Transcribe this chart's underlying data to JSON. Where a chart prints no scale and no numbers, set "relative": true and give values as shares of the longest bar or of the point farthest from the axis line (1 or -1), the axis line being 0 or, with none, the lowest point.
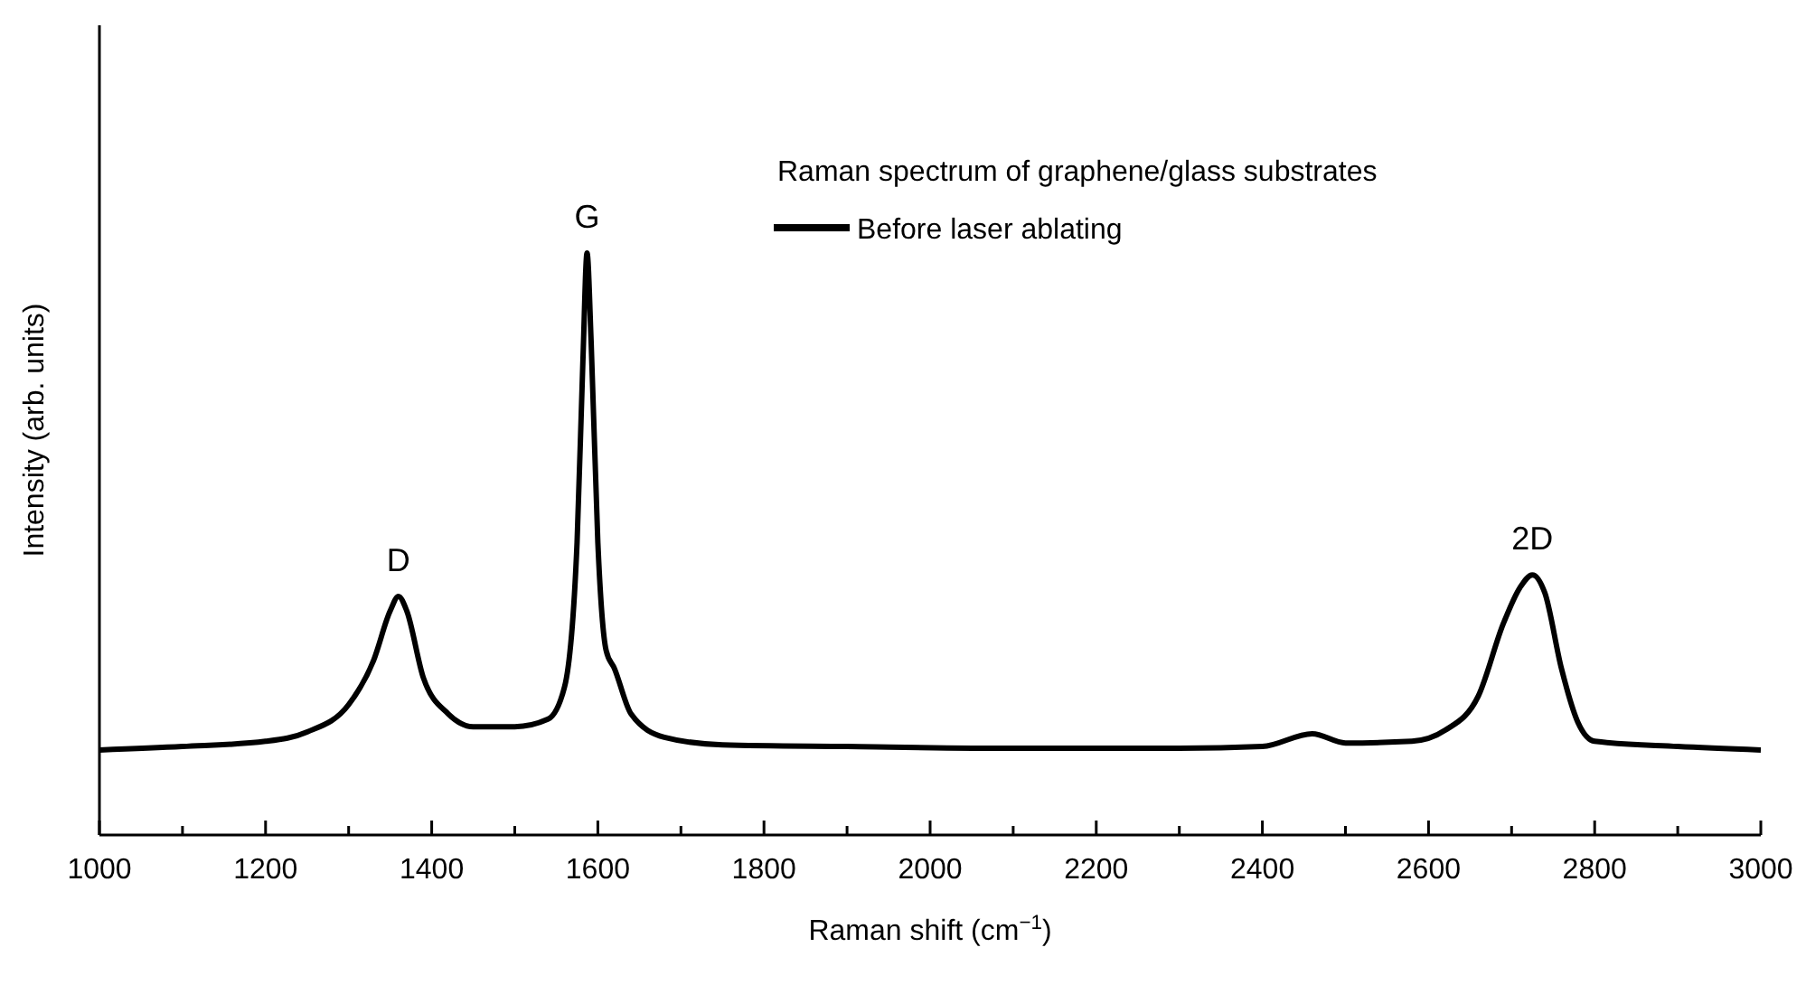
{
  "chart_data": {
    "type": "line",
    "relative": true,
    "xlabel": "Raman shift (cm$^{−1}$)",
    "ylabel": "Intensity (arb. units)",
    "legend_title": "Raman spectrum of graphene/glass substrates",
    "legend": "top right",
    "grid": false,
    "xlim": [
      1000,
      3000
    ],
    "xticks": [
      1000,
      {
        "value": 1100,
        "label": null
      },
      1200,
      {
        "value": 1300,
        "label": null
      },
      1400,
      {
        "value": 1500,
        "label": null
      },
      1600,
      {
        "value": 1700,
        "label": null
      },
      1800,
      {
        "value": 1900,
        "label": null
      },
      2000,
      {
        "value": 2100,
        "label": null
      },
      2200,
      {
        "value": 2300,
        "label": null
      },
      2400,
      {
        "value": 2500,
        "label": null
      },
      2600,
      {
        "value": 2700,
        "label": null
      },
      2800,
      {
        "value": 2900,
        "label": null
      },
      3000
    ],
    "annotations": [
      {
        "text": "D",
        "x": 1360,
        "y": 0.41
      },
      {
        "text": "G",
        "x": 1587,
        "y": 1.0
      },
      {
        "text": "2D",
        "x": 2725,
        "y": 0.447
      }
    ],
    "series": [
      {
        "name": "Before laser ablating",
        "color": "#000000",
        "x": [
          1000,
          1100,
          1200,
          1250,
          1300,
          1330,
          1350,
          1360,
          1370,
          1390,
          1420,
          1450,
          1500,
          1540,
          1560,
          1575,
          1582,
          1587,
          1592,
          1600,
          1610,
          1620,
          1640,
          1680,
          1750,
          1900,
          2100,
          2300,
          2400,
          2460,
          2500,
          2580,
          2620,
          2660,
          2690,
          2710,
          2725,
          2740,
          2760,
          2780,
          2800,
          2900,
          3000
        ],
        "values": [
          0.146,
          0.152,
          0.161,
          0.177,
          0.224,
          0.3,
          0.385,
          0.41,
          0.385,
          0.27,
          0.208,
          0.186,
          0.186,
          0.199,
          0.255,
          0.503,
          0.814,
          1.0,
          0.845,
          0.503,
          0.317,
          0.286,
          0.208,
          0.168,
          0.155,
          0.152,
          0.149,
          0.149,
          0.152,
          0.174,
          0.158,
          0.161,
          0.18,
          0.239,
          0.363,
          0.425,
          0.447,
          0.416,
          0.286,
          0.193,
          0.161,
          0.152,
          0.146
        ]
      }
    ]
  }
}
